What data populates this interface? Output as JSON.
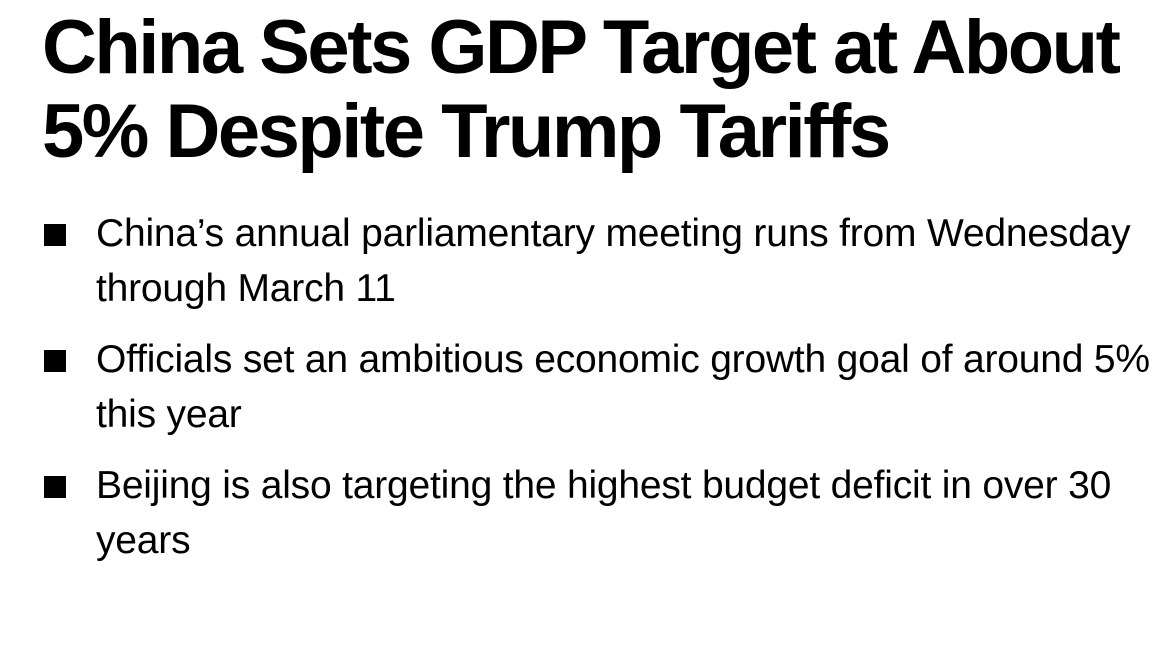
{
  "article": {
    "headline": "China Sets GDP Target at About 5% Despite Trump Tariffs",
    "bullets": [
      {
        "text": "China’s annual parliamentary meeting runs from Wednesday through March 11"
      },
      {
        "text": "Officials set an ambitious economic growth goal of around 5% this year"
      },
      {
        "text": "Beijing is also targeting the highest budget deficit in over 30 years"
      }
    ]
  },
  "colors": {
    "text": "#000000",
    "background": "#ffffff",
    "bullet_marker": "#000000"
  }
}
